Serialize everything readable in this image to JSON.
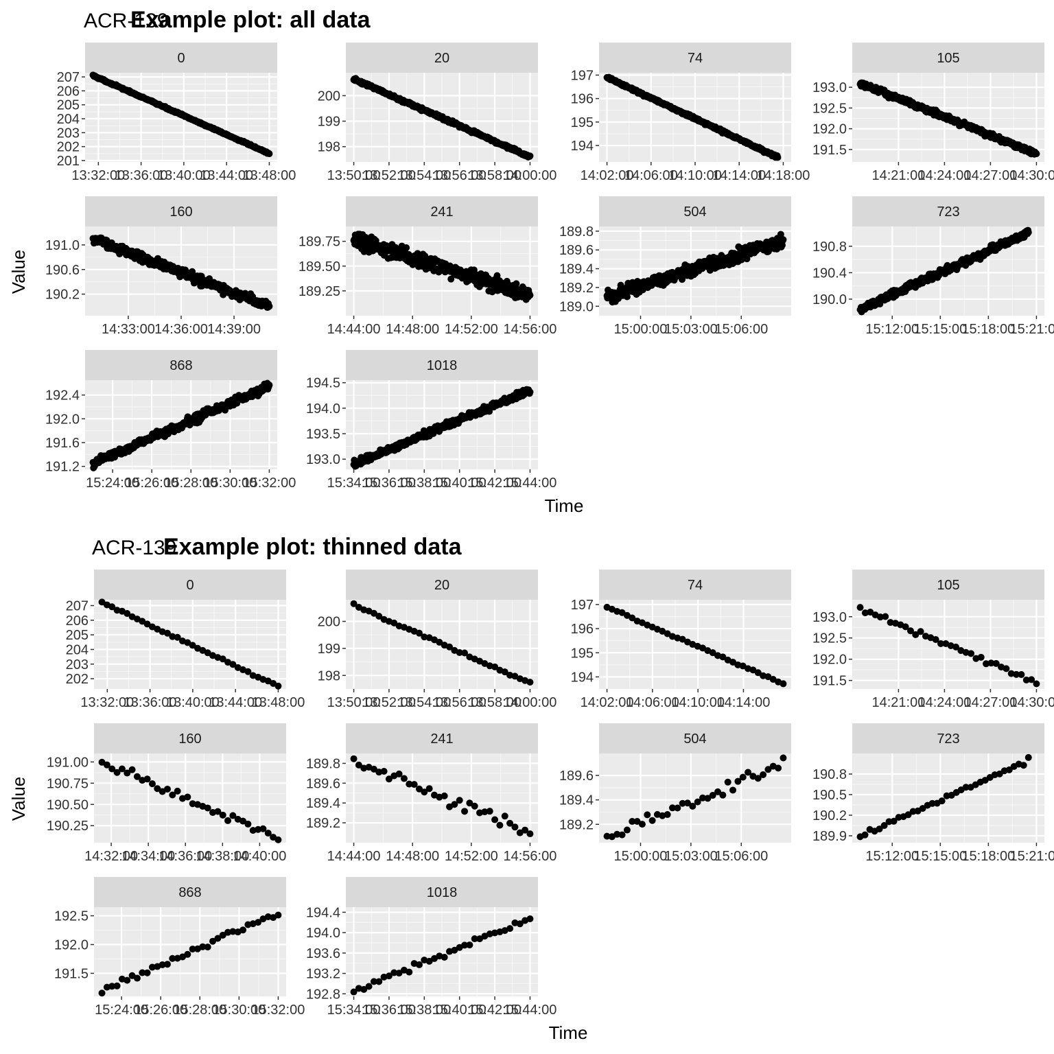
{
  "chart_data": [
    {
      "type": "scatter",
      "subtitle": "ACR-139",
      "title": "Example plot: all data",
      "xlabel": "Time",
      "ylabel": "Value",
      "point_color": "#000000",
      "panel_background": "#ebebeb",
      "strip_background": "#d9d9d9",
      "grid": true,
      "facets": [
        {
          "label": "0",
          "x_start": "13:31:30",
          "x_end": "13:48:00",
          "x_ticks": [
            "13:32:00",
            "13:36:00",
            "13:40:00",
            "13:44:00",
            "13:48:00"
          ],
          "y_ticks": [
            "201",
            "202",
            "203",
            "204",
            "205",
            "206",
            "207"
          ],
          "ylim": [
            200.9,
            207.3
          ],
          "y_start": 207.1,
          "y_end": 201.5,
          "noise": 0.05
        },
        {
          "label": "20",
          "x_start": "13:50:00",
          "x_end": "14:00:00",
          "x_ticks": [
            "13:50:00",
            "13:52:00",
            "13:54:00",
            "13:56:00",
            "13:58:00",
            "14:00:00"
          ],
          "y_ticks": [
            "198",
            "199",
            "200"
          ],
          "ylim": [
            197.4,
            200.9
          ],
          "y_start": 200.65,
          "y_end": 197.6,
          "noise": 0.05
        },
        {
          "label": "74",
          "x_start": "14:02:00",
          "x_end": "14:17:30",
          "x_ticks": [
            "14:02:00",
            "14:06:00",
            "14:10:00",
            "14:14:00",
            "14:18:00"
          ],
          "y_ticks": [
            "194",
            "195",
            "196",
            "197"
          ],
          "ylim": [
            193.3,
            197.1
          ],
          "y_start": 196.9,
          "y_end": 193.5,
          "noise": 0.05
        },
        {
          "label": "105",
          "x_start": "14:18:30",
          "x_end": "14:30:00",
          "x_ticks": [
            "14:21:00",
            "14:24:00",
            "14:27:00",
            "14:30:00"
          ],
          "y_ticks": [
            "191.5",
            "192.0",
            "192.5",
            "193.0"
          ],
          "ylim": [
            191.2,
            193.35
          ],
          "y_start": 193.1,
          "y_end": 191.4,
          "noise": 0.06
        },
        {
          "label": "160",
          "x_start": "14:31:00",
          "x_end": "14:41:00",
          "x_ticks": [
            "14:33:00",
            "14:36:00",
            "14:39:00"
          ],
          "y_ticks": [
            "190.2",
            "190.6",
            "191.0"
          ],
          "ylim": [
            189.85,
            191.3
          ],
          "y_start": 191.1,
          "y_end": 190.0,
          "noise": 0.07
        },
        {
          "label": "241",
          "x_start": "14:44:00",
          "x_end": "14:56:00",
          "x_ticks": [
            "14:44:00",
            "14:48:00",
            "14:52:00",
            "14:56:00"
          ],
          "y_ticks": [
            "189.25",
            "189.50",
            "189.75"
          ],
          "ylim": [
            189.0,
            189.9
          ],
          "y_start": 189.78,
          "y_end": 189.2,
          "noise": 0.07
        },
        {
          "label": "504",
          "x_start": "14:58:00",
          "x_end": "15:08:30",
          "x_ticks": [
            "15:00:00",
            "15:03:00",
            "15:06:00"
          ],
          "y_ticks": [
            "189.0",
            "189.2",
            "189.4",
            "189.6",
            "189.8"
          ],
          "ylim": [
            188.9,
            189.85
          ],
          "y_start": 189.1,
          "y_end": 189.7,
          "noise": 0.06
        },
        {
          "label": "723",
          "x_start": "15:10:00",
          "x_end": "15:20:30",
          "x_ticks": [
            "15:12:00",
            "15:15:00",
            "15:18:00",
            "15:21:00"
          ],
          "y_ticks": [
            "190.0",
            "190.4",
            "190.8"
          ],
          "ylim": [
            189.75,
            191.1
          ],
          "y_start": 189.85,
          "y_end": 191.0,
          "noise": 0.05
        },
        {
          "label": "868",
          "x_start": "15:23:00",
          "x_end": "15:32:00",
          "x_ticks": [
            "15:24:00",
            "15:26:00",
            "15:28:00",
            "15:30:00",
            "15:32:00"
          ],
          "y_ticks": [
            "191.2",
            "191.6",
            "192.0",
            "192.4"
          ],
          "ylim": [
            191.15,
            192.65
          ],
          "y_start": 191.25,
          "y_end": 192.55,
          "noise": 0.06
        },
        {
          "label": "1018",
          "x_start": "15:34:00",
          "x_end": "15:44:00",
          "x_ticks": [
            "15:34:00",
            "15:36:00",
            "15:38:00",
            "15:40:00",
            "15:42:00",
            "15:44:00"
          ],
          "y_ticks": [
            "193.0",
            "193.5",
            "194.0",
            "194.5"
          ],
          "ylim": [
            192.8,
            194.55
          ],
          "y_start": 192.9,
          "y_end": 194.35,
          "noise": 0.06
        }
      ]
    },
    {
      "type": "scatter",
      "subtitle": "ACR-139",
      "title": "Example plot: thinned data",
      "xlabel": "Time",
      "ylabel": "Value",
      "point_color": "#000000",
      "panel_background": "#ebebeb",
      "strip_background": "#d9d9d9",
      "grid": true,
      "facets": [
        {
          "label": "0",
          "x_start": "13:31:30",
          "x_end": "13:48:00",
          "x_ticks": [
            "13:32:00",
            "13:36:00",
            "13:40:00",
            "13:44:00",
            "13:48:00"
          ],
          "y_ticks": [
            "202",
            "203",
            "204",
            "205",
            "206",
            "207"
          ],
          "ylim": [
            201.3,
            207.4
          ],
          "y_start": 207.2,
          "y_end": 201.5,
          "noise": 0.07
        },
        {
          "label": "20",
          "x_start": "13:50:00",
          "x_end": "14:00:00",
          "x_ticks": [
            "13:50:00",
            "13:52:00",
            "13:54:00",
            "13:56:00",
            "13:58:00",
            "14:00:00"
          ],
          "y_ticks": [
            "198",
            "199",
            "200"
          ],
          "ylim": [
            197.5,
            200.8
          ],
          "y_start": 200.6,
          "y_end": 197.7,
          "noise": 0.05
        },
        {
          "label": "74",
          "x_start": "14:02:00",
          "x_end": "14:17:30",
          "x_ticks": [
            "14:02:00",
            "14:06:00",
            "14:10:00",
            "14:14:00"
          ],
          "y_ticks": [
            "194",
            "195",
            "196",
            "197"
          ],
          "ylim": [
            193.5,
            197.2
          ],
          "y_start": 196.9,
          "y_end": 193.7,
          "noise": 0.06
        },
        {
          "label": "105",
          "x_start": "14:18:30",
          "x_end": "14:30:00",
          "x_ticks": [
            "14:21:00",
            "14:24:00",
            "14:27:00",
            "14:30:00"
          ],
          "y_ticks": [
            "191.5",
            "192.0",
            "192.5",
            "193.0"
          ],
          "ylim": [
            191.3,
            193.4
          ],
          "y_start": 193.2,
          "y_end": 191.45,
          "noise": 0.06
        },
        {
          "label": "160",
          "x_start": "14:31:30",
          "x_end": "14:41:00",
          "x_ticks": [
            "14:32:00",
            "14:34:00",
            "14:36:00",
            "14:38:00",
            "14:40:00"
          ],
          "y_ticks": [
            "190.25",
            "190.50",
            "190.75",
            "191.00"
          ],
          "ylim": [
            190.05,
            191.1
          ],
          "y_start": 191.0,
          "y_end": 190.1,
          "noise": 0.05
        },
        {
          "label": "241",
          "x_start": "14:44:00",
          "x_end": "14:56:00",
          "x_ticks": [
            "14:44:00",
            "14:48:00",
            "14:52:00",
            "14:56:00"
          ],
          "y_ticks": [
            "189.2",
            "189.4",
            "189.6",
            "189.8"
          ],
          "ylim": [
            189.0,
            189.9
          ],
          "y_start": 189.82,
          "y_end": 189.1,
          "noise": 0.06
        },
        {
          "label": "504",
          "x_start": "14:58:00",
          "x_end": "15:08:30",
          "x_ticks": [
            "15:00:00",
            "15:03:00",
            "15:06:00"
          ],
          "y_ticks": [
            "189.2",
            "189.4",
            "189.6"
          ],
          "ylim": [
            189.05,
            189.78
          ],
          "y_start": 189.1,
          "y_end": 189.7,
          "noise": 0.05
        },
        {
          "label": "723",
          "x_start": "15:10:00",
          "x_end": "15:20:30",
          "x_ticks": [
            "15:12:00",
            "15:15:00",
            "15:18:00",
            "15:21:00"
          ],
          "y_ticks": [
            "189.9",
            "190.2",
            "190.5",
            "190.8"
          ],
          "ylim": [
            189.8,
            191.1
          ],
          "y_start": 189.9,
          "y_end": 191.0,
          "noise": 0.04
        },
        {
          "label": "868",
          "x_start": "15:23:00",
          "x_end": "15:32:00",
          "x_ticks": [
            "15:24:00",
            "15:26:00",
            "15:28:00",
            "15:30:00",
            "15:32:00"
          ],
          "y_ticks": [
            "191.5",
            "192.0",
            "192.5"
          ],
          "ylim": [
            191.1,
            192.65
          ],
          "y_start": 191.2,
          "y_end": 192.55,
          "noise": 0.06
        },
        {
          "label": "1018",
          "x_start": "15:34:00",
          "x_end": "15:44:00",
          "x_ticks": [
            "15:34:00",
            "15:36:00",
            "15:38:00",
            "15:40:00",
            "15:42:00",
            "15:44:00"
          ],
          "y_ticks": [
            "192.8",
            "193.2",
            "193.6",
            "194.0",
            "194.4"
          ],
          "ylim": [
            192.75,
            194.5
          ],
          "y_start": 192.85,
          "y_end": 194.3,
          "noise": 0.06
        }
      ]
    }
  ]
}
